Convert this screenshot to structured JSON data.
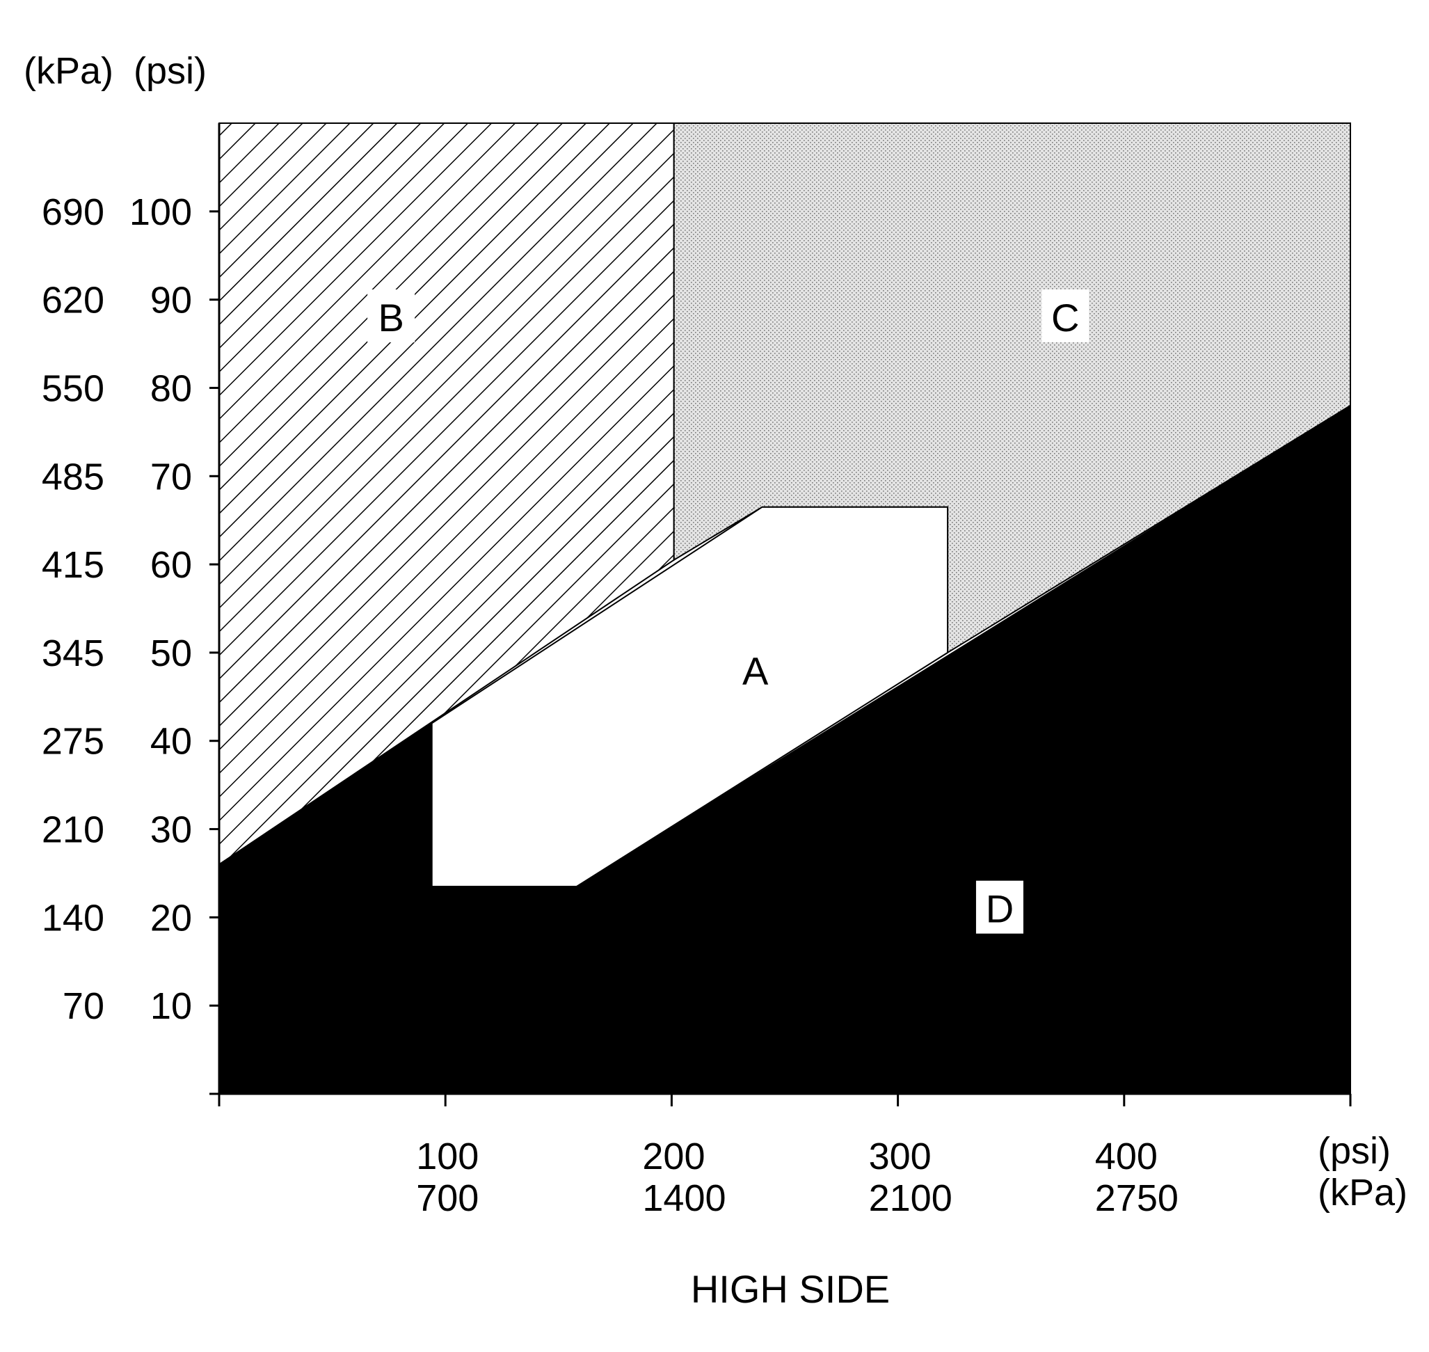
{
  "chart_data": {
    "type": "area",
    "title": "",
    "xlabel": "HIGH SIDE",
    "ylabel": "",
    "x_units": {
      "primary": "(psi)",
      "secondary": "(kPa)"
    },
    "y_units": {
      "primary": "(psi)",
      "secondary": "(kPa)"
    },
    "xlim": [
      0,
      500
    ],
    "ylim": [
      0,
      110
    ],
    "grid": false,
    "x_ticks": [
      {
        "psi": 100,
        "psi_label": "100",
        "kpa_label": "700"
      },
      {
        "psi": 200,
        "psi_label": "200",
        "kpa_label": "1400"
      },
      {
        "psi": 300,
        "psi_label": "300",
        "kpa_label": "2100"
      },
      {
        "psi": 400,
        "psi_label": "400",
        "kpa_label": "2750"
      }
    ],
    "y_ticks": [
      {
        "psi": 10,
        "psi_label": "10",
        "kpa_label": "70"
      },
      {
        "psi": 20,
        "psi_label": "20",
        "kpa_label": "140"
      },
      {
        "psi": 30,
        "psi_label": "30",
        "kpa_label": "210"
      },
      {
        "psi": 40,
        "psi_label": "40",
        "kpa_label": "275"
      },
      {
        "psi": 50,
        "psi_label": "50",
        "kpa_label": "345"
      },
      {
        "psi": 60,
        "psi_label": "60",
        "kpa_label": "415"
      },
      {
        "psi": 70,
        "psi_label": "70",
        "kpa_label": "485"
      },
      {
        "psi": 80,
        "psi_label": "80",
        "kpa_label": "550"
      },
      {
        "psi": 90,
        "psi_label": "90",
        "kpa_label": "620"
      },
      {
        "psi": 100,
        "psi_label": "100",
        "kpa_label": "690"
      }
    ],
    "regions": [
      {
        "label": "B",
        "fill": "hatched",
        "polygon": [
          [
            0,
            110
          ],
          [
            201,
            110
          ],
          [
            201,
            60.5
          ],
          [
            0,
            26
          ]
        ],
        "label_at": [
          76,
          88
        ]
      },
      {
        "label": "C",
        "fill": "stippled",
        "polygon": [
          [
            201,
            110
          ],
          [
            500,
            110
          ],
          [
            500,
            78
          ],
          [
            322,
            50
          ],
          [
            322,
            66.5
          ],
          [
            240,
            66.5
          ],
          [
            201,
            60.5
          ]
        ],
        "label_at": [
          374,
          88
        ]
      },
      {
        "label": "D",
        "fill": "solid-black",
        "polygon": [
          [
            0,
            0
          ],
          [
            500,
            0
          ],
          [
            500,
            78
          ],
          [
            158,
            23.5
          ],
          [
            94,
            23.5
          ],
          [
            94,
            42
          ],
          [
            0,
            26
          ]
        ],
        "label_at": [
          345,
          21
        ]
      },
      {
        "label": "A",
        "fill": "white",
        "polygon": [
          [
            94,
            42
          ],
          [
            94,
            23.5
          ],
          [
            158,
            23.5
          ],
          [
            322,
            50
          ],
          [
            322,
            66.5
          ],
          [
            240,
            66.5
          ]
        ],
        "label_at": [
          237,
          48
        ]
      }
    ],
    "colors": {
      "outline": "#000000",
      "solid": "#000000",
      "stipple": "#e4e4e4",
      "background": "#ffffff"
    }
  }
}
